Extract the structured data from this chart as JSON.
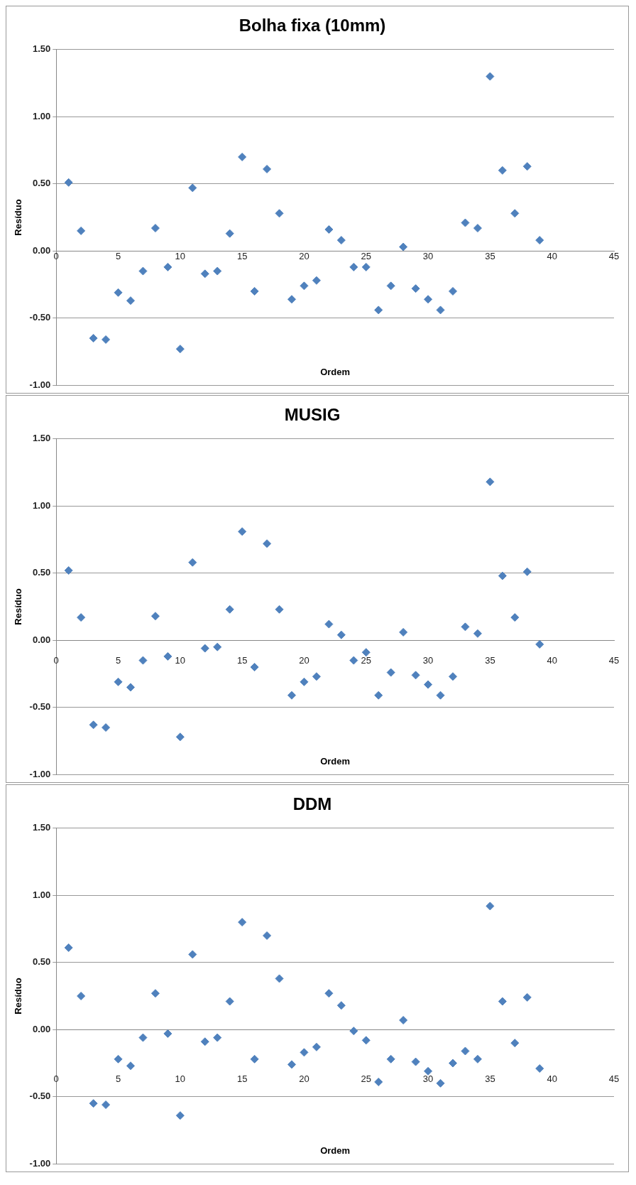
{
  "chart_data": [
    {
      "type": "scatter",
      "title": "Bolha fixa (10mm)",
      "xlabel": "Ordem",
      "ylabel": "Resíduo",
      "marker": "diamond",
      "grid": "y",
      "legend": false,
      "xlim": [
        0,
        45
      ],
      "xticks": [
        0,
        5,
        10,
        15,
        20,
        25,
        30,
        35,
        40,
        45
      ],
      "ylim": [
        -1,
        1.5
      ],
      "yticks": [
        {
          "value": -1,
          "label": "-1.00"
        },
        {
          "value": -0.5,
          "label": "-0.50"
        },
        {
          "value": 0,
          "label": "0.00"
        },
        {
          "value": 0.5,
          "label": "0.50"
        },
        {
          "value": 1,
          "label": "1.00"
        },
        {
          "value": 1.5,
          "label": "1.50"
        }
      ],
      "x": [
        1,
        2,
        3,
        4,
        5,
        6,
        7,
        8,
        9,
        10,
        11,
        12,
        13,
        14,
        15,
        16,
        17,
        18,
        19,
        20,
        21,
        22,
        23,
        24,
        25,
        26,
        27,
        28,
        29,
        30,
        31,
        32,
        33,
        34,
        35,
        36,
        37,
        38,
        39
      ],
      "series": [
        {
          "color": "#4f81bd",
          "values": [
            0.51,
            0.15,
            -0.65,
            -0.66,
            -0.31,
            -0.37,
            -0.15,
            0.17,
            -0.12,
            -0.73,
            0.47,
            -0.17,
            -0.15,
            0.13,
            0.7,
            -0.3,
            0.61,
            0.28,
            -0.36,
            -0.26,
            -0.22,
            0.16,
            0.08,
            -0.12,
            -0.12,
            -0.44,
            -0.26,
            0.03,
            -0.28,
            -0.36,
            -0.44,
            -0.3,
            0.21,
            0.17,
            1.3,
            0.6,
            0.28,
            0.63,
            0.08
          ]
        }
      ]
    },
    {
      "type": "scatter",
      "title": "MUSIG",
      "xlabel": "Ordem",
      "ylabel": "Resíduo",
      "marker": "diamond",
      "grid": "y",
      "legend": false,
      "xlim": [
        0,
        45
      ],
      "xticks": [
        0,
        5,
        10,
        15,
        20,
        25,
        30,
        35,
        40,
        45
      ],
      "ylim": [
        -1,
        1.5
      ],
      "yticks": [
        {
          "value": -1,
          "label": "-1.00"
        },
        {
          "value": -0.5,
          "label": "-0.50"
        },
        {
          "value": 0,
          "label": "0.00"
        },
        {
          "value": 0.5,
          "label": "0.50"
        },
        {
          "value": 1,
          "label": "1.00"
        },
        {
          "value": 1.5,
          "label": "1.50"
        }
      ],
      "x": [
        1,
        2,
        3,
        4,
        5,
        6,
        7,
        8,
        9,
        10,
        11,
        12,
        13,
        14,
        15,
        16,
        17,
        18,
        19,
        20,
        21,
        22,
        23,
        24,
        25,
        26,
        27,
        28,
        29,
        30,
        31,
        32,
        33,
        34,
        35,
        36,
        37,
        38,
        39
      ],
      "series": [
        {
          "color": "#4f81bd",
          "values": [
            0.52,
            0.17,
            -0.63,
            -0.65,
            -0.31,
            -0.35,
            -0.15,
            0.18,
            -0.12,
            -0.72,
            0.58,
            -0.06,
            -0.05,
            0.23,
            0.81,
            -0.2,
            0.72,
            0.23,
            -0.41,
            -0.31,
            -0.27,
            0.12,
            0.04,
            -0.15,
            -0.09,
            -0.41,
            -0.24,
            0.06,
            -0.26,
            -0.33,
            -0.41,
            -0.27,
            0.1,
            0.05,
            1.18,
            0.48,
            0.17,
            0.51,
            -0.03
          ]
        }
      ]
    },
    {
      "type": "scatter",
      "title": "DDM",
      "xlabel": "Ordem",
      "ylabel": "Resíduo",
      "marker": "diamond",
      "grid": "y",
      "legend": false,
      "xlim": [
        0,
        45
      ],
      "xticks": [
        0,
        5,
        10,
        15,
        20,
        25,
        30,
        35,
        40,
        45
      ],
      "ylim": [
        -1,
        1.5
      ],
      "yticks": [
        {
          "value": -1,
          "label": "-1.00"
        },
        {
          "value": -0.5,
          "label": "-0.50"
        },
        {
          "value": 0,
          "label": "0.00"
        },
        {
          "value": 0.5,
          "label": "0.50"
        },
        {
          "value": 1,
          "label": "1.00"
        },
        {
          "value": 1.5,
          "label": "1.50"
        }
      ],
      "x": [
        1,
        2,
        3,
        4,
        5,
        6,
        7,
        8,
        9,
        10,
        11,
        12,
        13,
        14,
        15,
        16,
        17,
        18,
        19,
        20,
        21,
        22,
        23,
        24,
        25,
        26,
        27,
        28,
        29,
        30,
        31,
        32,
        33,
        34,
        35,
        36,
        37,
        38,
        39
      ],
      "series": [
        {
          "color": "#4f81bd",
          "values": [
            0.61,
            0.25,
            -0.55,
            -0.56,
            -0.22,
            -0.27,
            -0.06,
            0.27,
            -0.03,
            -0.64,
            0.56,
            -0.09,
            -0.06,
            0.21,
            0.8,
            -0.22,
            0.7,
            0.38,
            -0.26,
            -0.17,
            -0.13,
            0.27,
            0.18,
            -0.01,
            -0.08,
            -0.39,
            -0.22,
            0.07,
            -0.24,
            -0.31,
            -0.4,
            -0.25,
            -0.16,
            -0.22,
            0.92,
            0.21,
            -0.1,
            0.24,
            -0.29
          ]
        }
      ]
    }
  ]
}
